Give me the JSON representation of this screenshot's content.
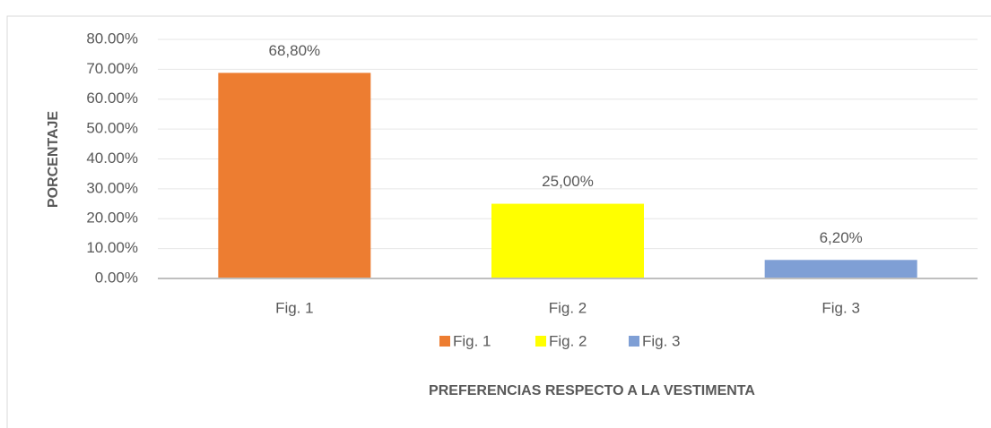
{
  "chart_data": {
    "type": "bar",
    "x_label": "PREFERENCIAS RESPECTO A LA VESTIMENTA",
    "y_label": "PORCENTAJE",
    "categories": [
      "Fig. 1",
      "Fig. 2",
      "Fig. 3"
    ],
    "values": [
      68.8,
      25,
      6.2
    ],
    "value_labels": [
      "68,80%",
      "25,00%",
      "6,20%"
    ],
    "colors": [
      "#ed7d31",
      "#ffff00",
      "#7f9fd5"
    ],
    "ylim": [
      0,
      80
    ],
    "yticks": [
      {
        "value": 0,
        "label": "0.00%"
      },
      {
        "value": 10,
        "label": "10.00%"
      },
      {
        "value": 20,
        "label": "20.00%"
      },
      {
        "value": 30,
        "label": "30.00%"
      },
      {
        "value": 40,
        "label": "40.00%"
      },
      {
        "value": 50,
        "label": "50.00%"
      },
      {
        "value": 60,
        "label": "60.00%"
      },
      {
        "value": 70,
        "label": "70.00%"
      },
      {
        "value": 80,
        "label": "80.00%"
      }
    ],
    "grid": true,
    "legend": "bottom"
  }
}
